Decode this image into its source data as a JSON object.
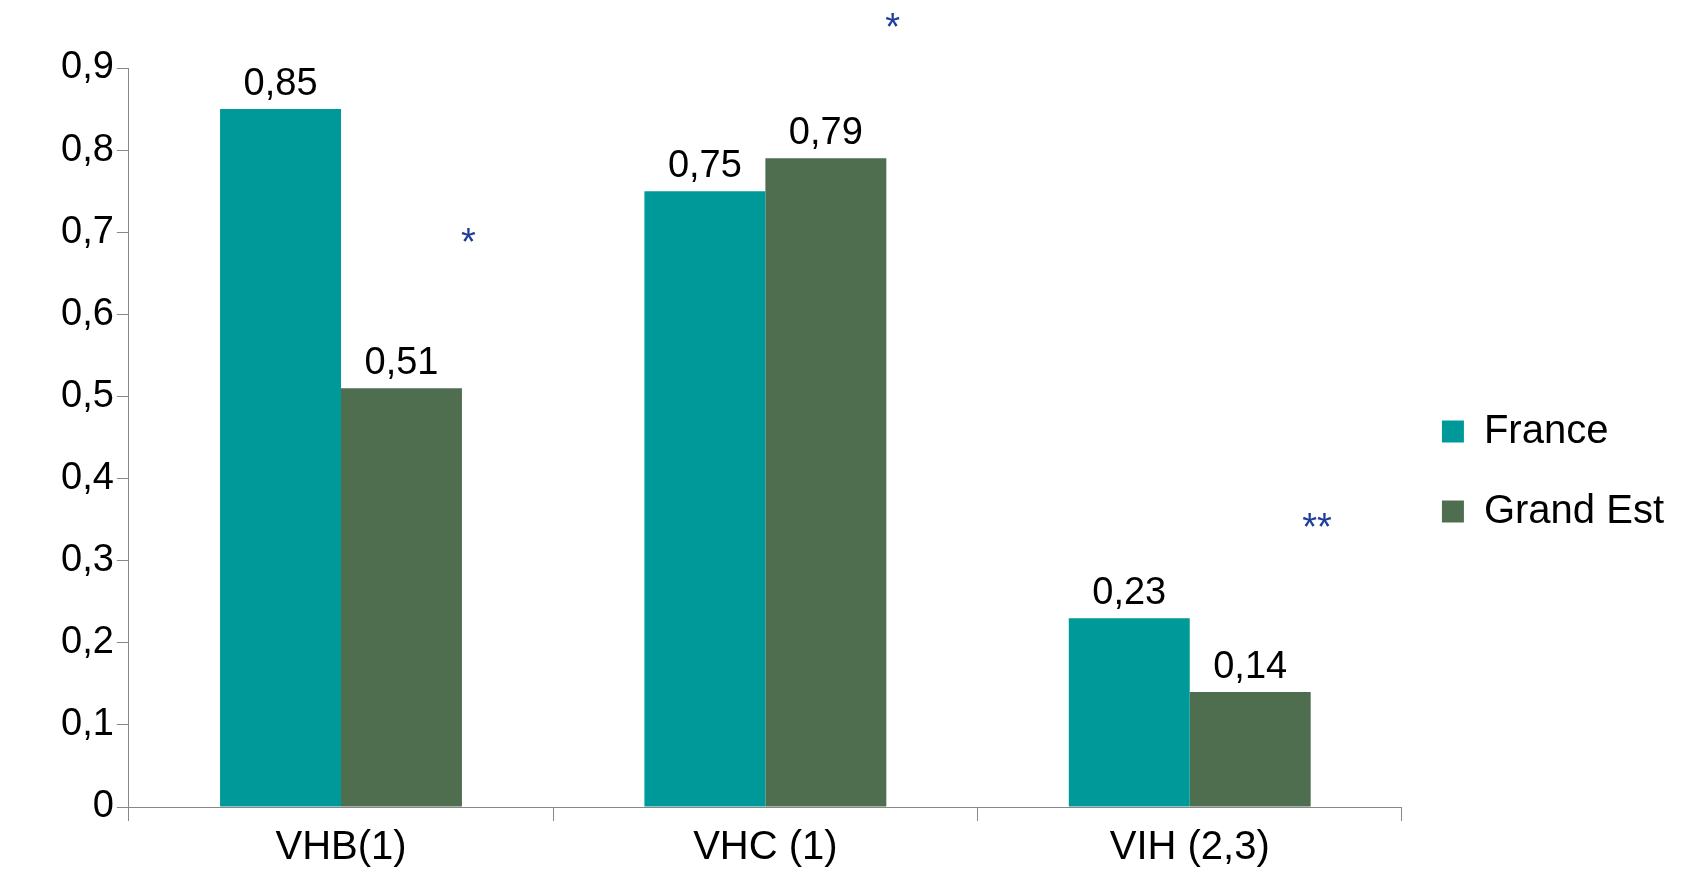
{
  "chart_data": {
    "type": "bar",
    "categories": [
      "VHB(1)",
      "VHC (1)",
      "VIH (2,3)"
    ],
    "series": [
      {
        "name": "France",
        "color": "#009999",
        "values": [
          0.85,
          0.75,
          0.23
        ],
        "value_labels": [
          "0,85",
          "0,75",
          "0,23"
        ]
      },
      {
        "name": "Grand Est",
        "color": "#4e6e4f",
        "values": [
          0.51,
          0.79,
          0.14
        ],
        "value_labels": [
          "0,51",
          "0,79",
          "0,14"
        ]
      }
    ],
    "ylim": [
      0,
      0.9
    ],
    "yticks": [
      {
        "value": 0,
        "label": "0"
      },
      {
        "value": 0.1,
        "label": "0,1"
      },
      {
        "value": 0.2,
        "label": "0,2"
      },
      {
        "value": 0.3,
        "label": "0,3"
      },
      {
        "value": 0.4,
        "label": "0,4"
      },
      {
        "value": 0.5,
        "label": "0,5"
      },
      {
        "value": 0.6,
        "label": "0,6"
      },
      {
        "value": 0.7,
        "label": "0,7"
      },
      {
        "value": 0.8,
        "label": "0,8"
      },
      {
        "value": 0.9,
        "label": "0,9"
      }
    ],
    "grid": false,
    "legend": "right",
    "annotations": [
      "*",
      "*",
      "**"
    ]
  }
}
